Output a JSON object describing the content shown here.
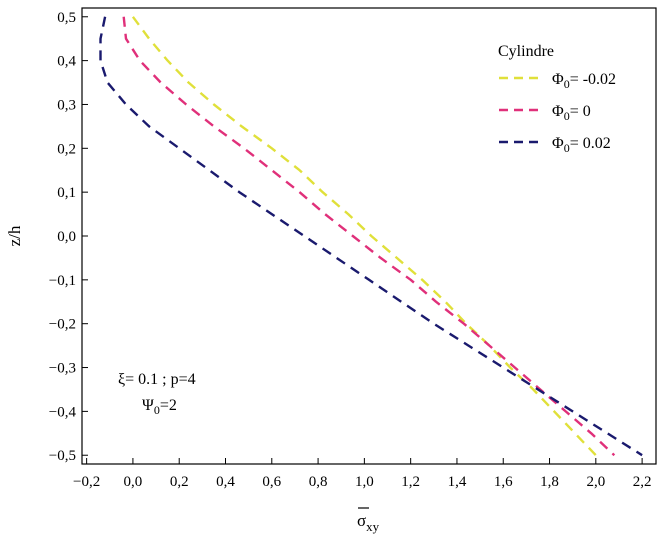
{
  "chart_data": {
    "type": "line",
    "xlabel": "σxy",
    "ylabel": "z/h",
    "xlim": [
      -0.22,
      2.26
    ],
    "ylim": [
      -0.52,
      0.52
    ],
    "x_ticks": [
      "−0,2",
      "0,0",
      "0,2",
      "0,4",
      "0,6",
      "0,8",
      "1,0",
      "1,2",
      "1,4",
      "1,6",
      "1,8",
      "2,0",
      "2,2"
    ],
    "x_tick_values": [
      -0.2,
      0.0,
      0.2,
      0.4,
      0.6,
      0.8,
      1.0,
      1.2,
      1.4,
      1.6,
      1.8,
      2.0,
      2.2
    ],
    "y_ticks": [
      "0,5",
      "0,4",
      "0,3",
      "0,2",
      "0,1",
      "0,0",
      "−0,1",
      "−0,2",
      "−0,3",
      "−0,4",
      "−0,5"
    ],
    "y_tick_values": [
      0.5,
      0.4,
      0.3,
      0.2,
      0.1,
      0.0,
      -0.1,
      -0.2,
      -0.3,
      -0.4,
      -0.5
    ],
    "legend": {
      "title": "Cylindre",
      "placement": "top-right"
    },
    "series": [
      {
        "name": "Φ0= -0.02",
        "color": "#e0e03a",
        "y": [
          0.5,
          0.45,
          0.4,
          0.35,
          0.3,
          0.25,
          0.2,
          0.15,
          0.1,
          0.05,
          0.0,
          -0.05,
          -0.1,
          -0.15,
          -0.2,
          -0.25,
          -0.3,
          -0.35,
          -0.4,
          -0.45,
          -0.5
        ],
        "x": [
          0.0,
          0.07,
          0.15,
          0.24,
          0.35,
          0.47,
          0.6,
          0.72,
          0.82,
          0.93,
          1.03,
          1.14,
          1.25,
          1.35,
          1.44,
          1.54,
          1.63,
          1.73,
          1.82,
          1.91,
          2.0
        ]
      },
      {
        "name": "Φ0= 0",
        "color": "#e0307a",
        "y": [
          0.5,
          0.45,
          0.4,
          0.35,
          0.3,
          0.25,
          0.2,
          0.15,
          0.1,
          0.05,
          0.0,
          -0.05,
          -0.1,
          -0.15,
          -0.2,
          -0.25,
          -0.3,
          -0.35,
          -0.4,
          -0.45,
          -0.5
        ],
        "x": [
          -0.04,
          -0.03,
          0.03,
          0.12,
          0.23,
          0.35,
          0.48,
          0.6,
          0.72,
          0.83,
          0.95,
          1.07,
          1.2,
          1.31,
          1.43,
          1.54,
          1.65,
          1.76,
          1.87,
          1.98,
          2.08
        ]
      },
      {
        "name": "Φ0= 0.02",
        "color": "#1a1a6e",
        "y": [
          0.5,
          0.45,
          0.4,
          0.35,
          0.3,
          0.25,
          0.2,
          0.15,
          0.1,
          0.05,
          0.0,
          -0.05,
          -0.1,
          -0.15,
          -0.2,
          -0.25,
          -0.3,
          -0.35,
          -0.4,
          -0.45,
          -0.5
        ],
        "x": [
          -0.12,
          -0.14,
          -0.14,
          -0.11,
          -0.03,
          0.07,
          0.2,
          0.33,
          0.46,
          0.6,
          0.74,
          0.88,
          1.02,
          1.16,
          1.3,
          1.45,
          1.6,
          1.75,
          1.9,
          2.05,
          2.2
        ]
      }
    ],
    "annotation": {
      "line1": "ξ= 0.1 ; p=4",
      "line2": "Ψ0=2"
    }
  }
}
